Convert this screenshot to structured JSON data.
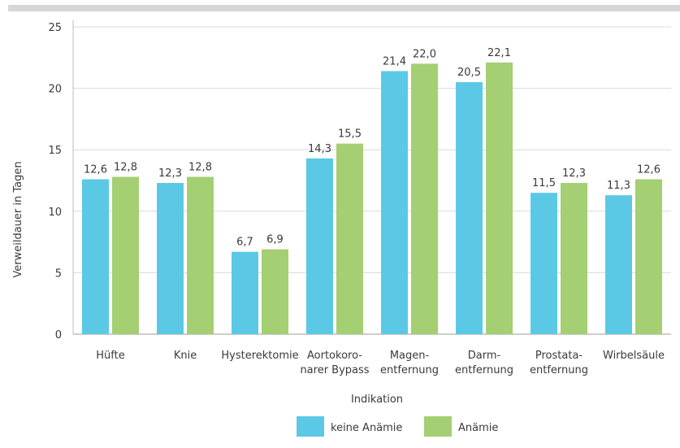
{
  "chart_data": {
    "type": "bar",
    "xlabel": "Indikation",
    "ylabel": "Verweildauer in Tagen",
    "ylim": [
      0,
      25
    ],
    "yticks": [
      0,
      5,
      10,
      15,
      20,
      25
    ],
    "grid": true,
    "legend_position": "bottom-center",
    "categories": [
      [
        "Hüfte"
      ],
      [
        "Knie"
      ],
      [
        "Hysterektomie"
      ],
      [
        "Aortokoro-",
        "narer Bypass"
      ],
      [
        "Magen-",
        "entfernung"
      ],
      [
        "Darm-",
        "entfernung"
      ],
      [
        "Prostata-",
        "entfernung"
      ],
      [
        "Wirbelsäule"
      ]
    ],
    "series": [
      {
        "name": "keine Anämie",
        "color": "#5bc9e6",
        "values": [
          12.6,
          12.3,
          6.7,
          14.3,
          21.4,
          20.5,
          11.5,
          11.3
        ],
        "labels": [
          "12,6",
          "12,3",
          "6,7",
          "14,3",
          "21,4",
          "20,5",
          "11,5",
          "11,3"
        ]
      },
      {
        "name": "Anämie",
        "color": "#a4cf72",
        "values": [
          12.8,
          12.8,
          6.9,
          15.5,
          22.0,
          22.1,
          12.3,
          12.6
        ],
        "labels": [
          "12,8",
          "12,8",
          "6,9",
          "15,5",
          "22,0",
          "22,1",
          "12,3",
          "12,6"
        ]
      }
    ],
    "colors": {
      "top_bar": "#d6d6d6",
      "grid": "#d9d9d9",
      "axis": "#bdbdbd"
    }
  }
}
